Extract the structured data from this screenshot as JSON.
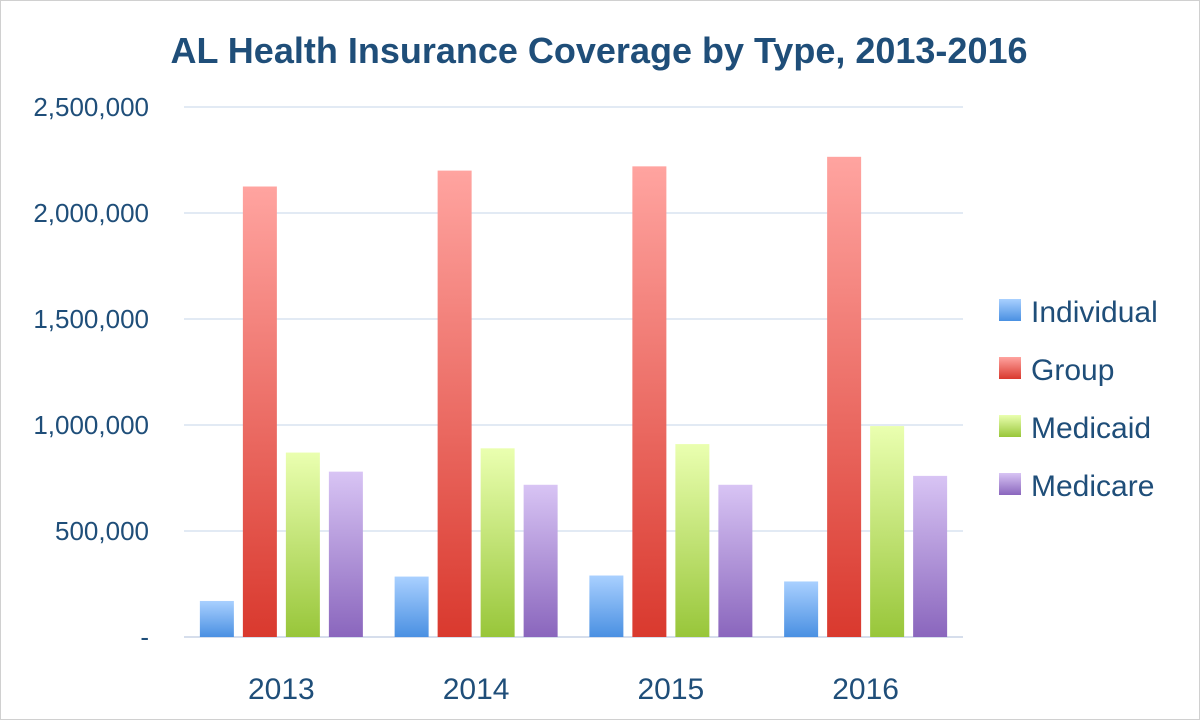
{
  "chart_data": {
    "type": "bar",
    "title": "AL Health Insurance Coverage by Type, 2013-2016",
    "xlabel": "",
    "ylabel": "",
    "categories": [
      "2013",
      "2014",
      "2015",
      "2016"
    ],
    "ylim": [
      0,
      2500000
    ],
    "yticks": [
      0,
      500000,
      1000000,
      1500000,
      2000000,
      2500000
    ],
    "ytick_labels": [
      "-",
      "500,000",
      "1,000,000",
      "1,500,000",
      "2,000,000",
      "2,500,000"
    ],
    "grid": true,
    "legend_position": "right",
    "series": [
      {
        "name": "Individual",
        "color_top": "#a9d0ff",
        "color_bottom": "#4a90e2",
        "values": [
          170000,
          285000,
          290000,
          262000
        ]
      },
      {
        "name": "Group",
        "color_top": "#ffa4a0",
        "color_bottom": "#d9392e",
        "values": [
          2125000,
          2200000,
          2220000,
          2265000
        ]
      },
      {
        "name": "Medicaid",
        "color_top": "#eaffb0",
        "color_bottom": "#98c63a",
        "values": [
          870000,
          890000,
          910000,
          995000
        ]
      },
      {
        "name": "Medicare",
        "color_top": "#d8c4f4",
        "color_bottom": "#8a66bd",
        "values": [
          780000,
          718000,
          718000,
          760000
        ]
      }
    ]
  }
}
